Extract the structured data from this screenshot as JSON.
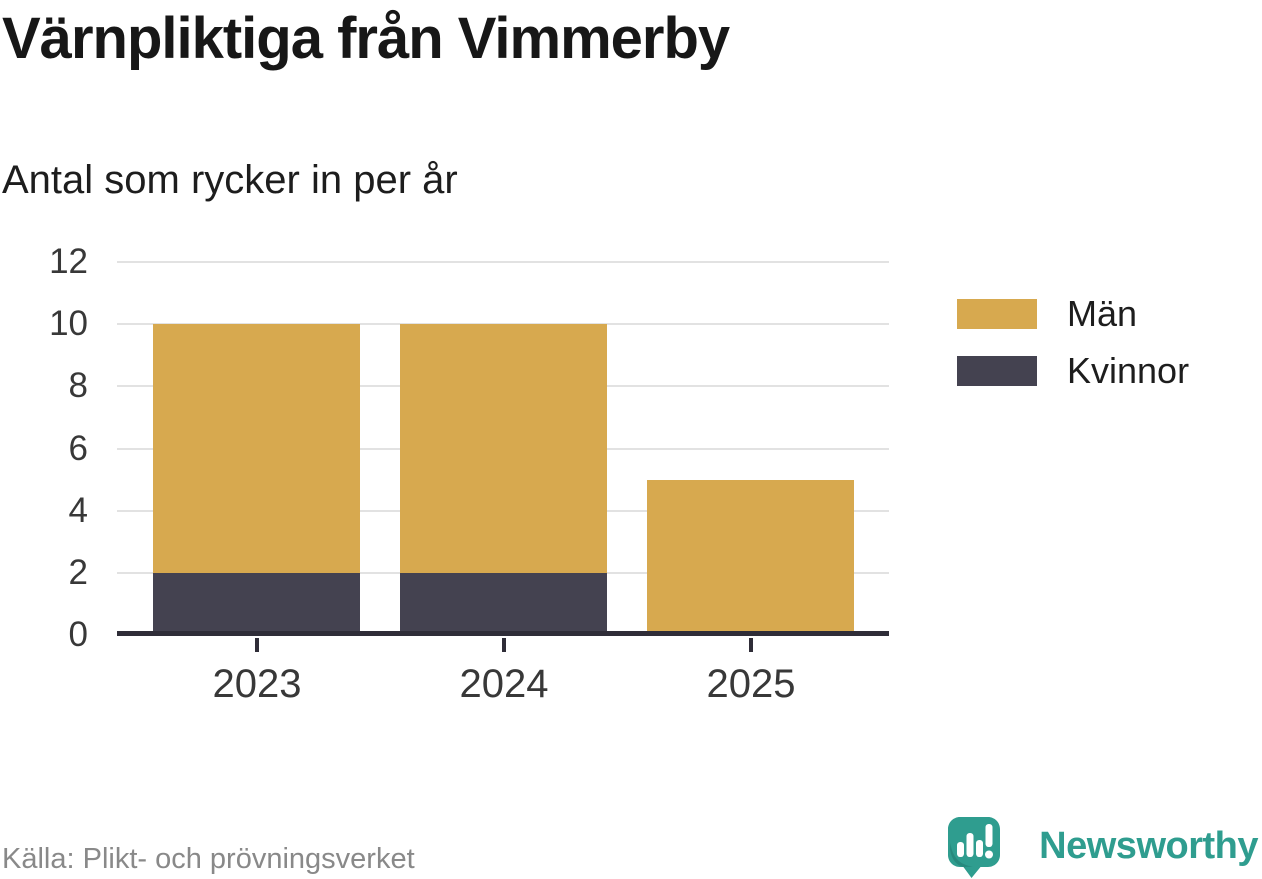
{
  "chart_data": {
    "type": "bar",
    "stacked": true,
    "title": "Värnpliktiga från Vimmerby",
    "subtitle": "Antal som rycker in per år",
    "categories": [
      "2023",
      "2024",
      "2025"
    ],
    "series": [
      {
        "name": "Män",
        "color": "#d7a94f",
        "values": [
          8,
          8,
          5
        ]
      },
      {
        "name": "Kvinnor",
        "color": "#444250",
        "values": [
          2,
          2,
          0
        ]
      }
    ],
    "stack_order_bottom_to_top": [
      "Kvinnor",
      "Män"
    ],
    "ylim": [
      0,
      12
    ],
    "yticks": [
      0,
      2,
      4,
      6,
      8,
      10,
      12
    ],
    "grid": true,
    "legend_position": "right"
  },
  "colors": {
    "grid": "#e2e2e2",
    "axis": "#2f2d38",
    "tick_text": "#383838",
    "muted_text": "#898989",
    "brand_teal": "#2f9d8f",
    "brand_teal_dark": "#27897d"
  },
  "footer": {
    "source": "Källa: Plikt- och prövningsverket",
    "brand_name": "Newsworthy"
  }
}
